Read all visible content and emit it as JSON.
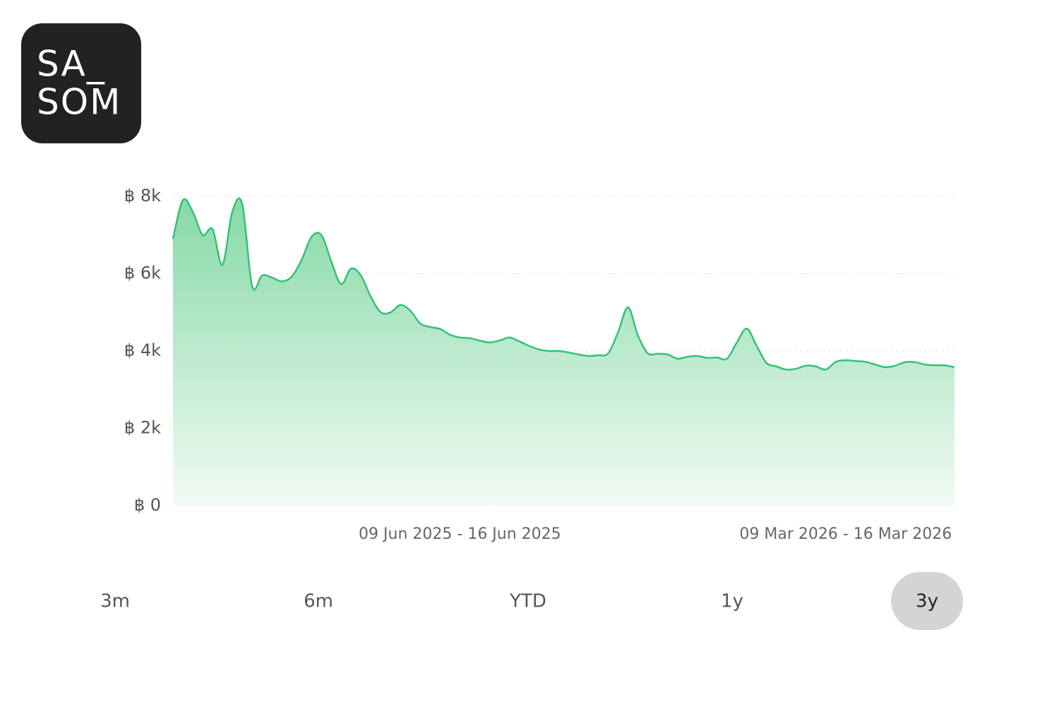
{
  "logo": {
    "line1": "SA_",
    "line2": "SOM"
  },
  "chart_data": {
    "type": "area",
    "categories": [
      null,
      null,
      null,
      null,
      null,
      null,
      null,
      null,
      null,
      null,
      null,
      null,
      null,
      null,
      null,
      null,
      null,
      null,
      null,
      null,
      null,
      null,
      null,
      null,
      null,
      null,
      null,
      null,
      null,
      "09 Jun 2025 - 16 Jun 2025",
      null,
      null,
      null,
      null,
      null,
      null,
      null,
      null,
      null,
      null,
      null,
      null,
      null,
      null,
      null,
      null,
      null,
      null,
      null,
      null,
      null,
      null,
      null,
      null,
      null,
      null,
      null,
      null,
      null,
      null,
      null,
      null,
      null,
      null,
      null,
      null,
      null,
      null,
      "09 Mar 2026 - 16 Mar 2026",
      null,
      null,
      null,
      null,
      null,
      null,
      null,
      null,
      null,
      null,
      null
    ],
    "values": [
      6900,
      7900,
      7600,
      7000,
      7150,
      6230,
      7600,
      7800,
      5680,
      5950,
      5900,
      5800,
      5920,
      6350,
      6950,
      7000,
      6320,
      5730,
      6130,
      5950,
      5400,
      5000,
      5000,
      5190,
      5040,
      4710,
      4620,
      4570,
      4420,
      4350,
      4330,
      4270,
      4220,
      4270,
      4350,
      4250,
      4130,
      4040,
      4000,
      4000,
      3960,
      3910,
      3870,
      3890,
      3940,
      4490,
      5130,
      4400,
      3940,
      3930,
      3910,
      3800,
      3850,
      3870,
      3820,
      3830,
      3800,
      4220,
      4580,
      4130,
      3690,
      3600,
      3520,
      3540,
      3620,
      3600,
      3520,
      3720,
      3760,
      3740,
      3720,
      3650,
      3580,
      3620,
      3710,
      3710,
      3650,
      3630,
      3630,
      3580
    ],
    "color": "#34c176",
    "ylim": [
      0,
      8000
    ],
    "yticks": [
      {
        "value": 0,
        "label": "฿ 0"
      },
      {
        "value": 2000,
        "label": "฿ 2k"
      },
      {
        "value": 4000,
        "label": "฿ 4k"
      },
      {
        "value": 6000,
        "label": "฿ 6k"
      },
      {
        "value": 8000,
        "label": "฿ 8k"
      }
    ],
    "grid": true
  },
  "range_buttons": [
    "3m",
    "6m",
    "YTD",
    "1y",
    "3y"
  ],
  "active_range": "3y"
}
